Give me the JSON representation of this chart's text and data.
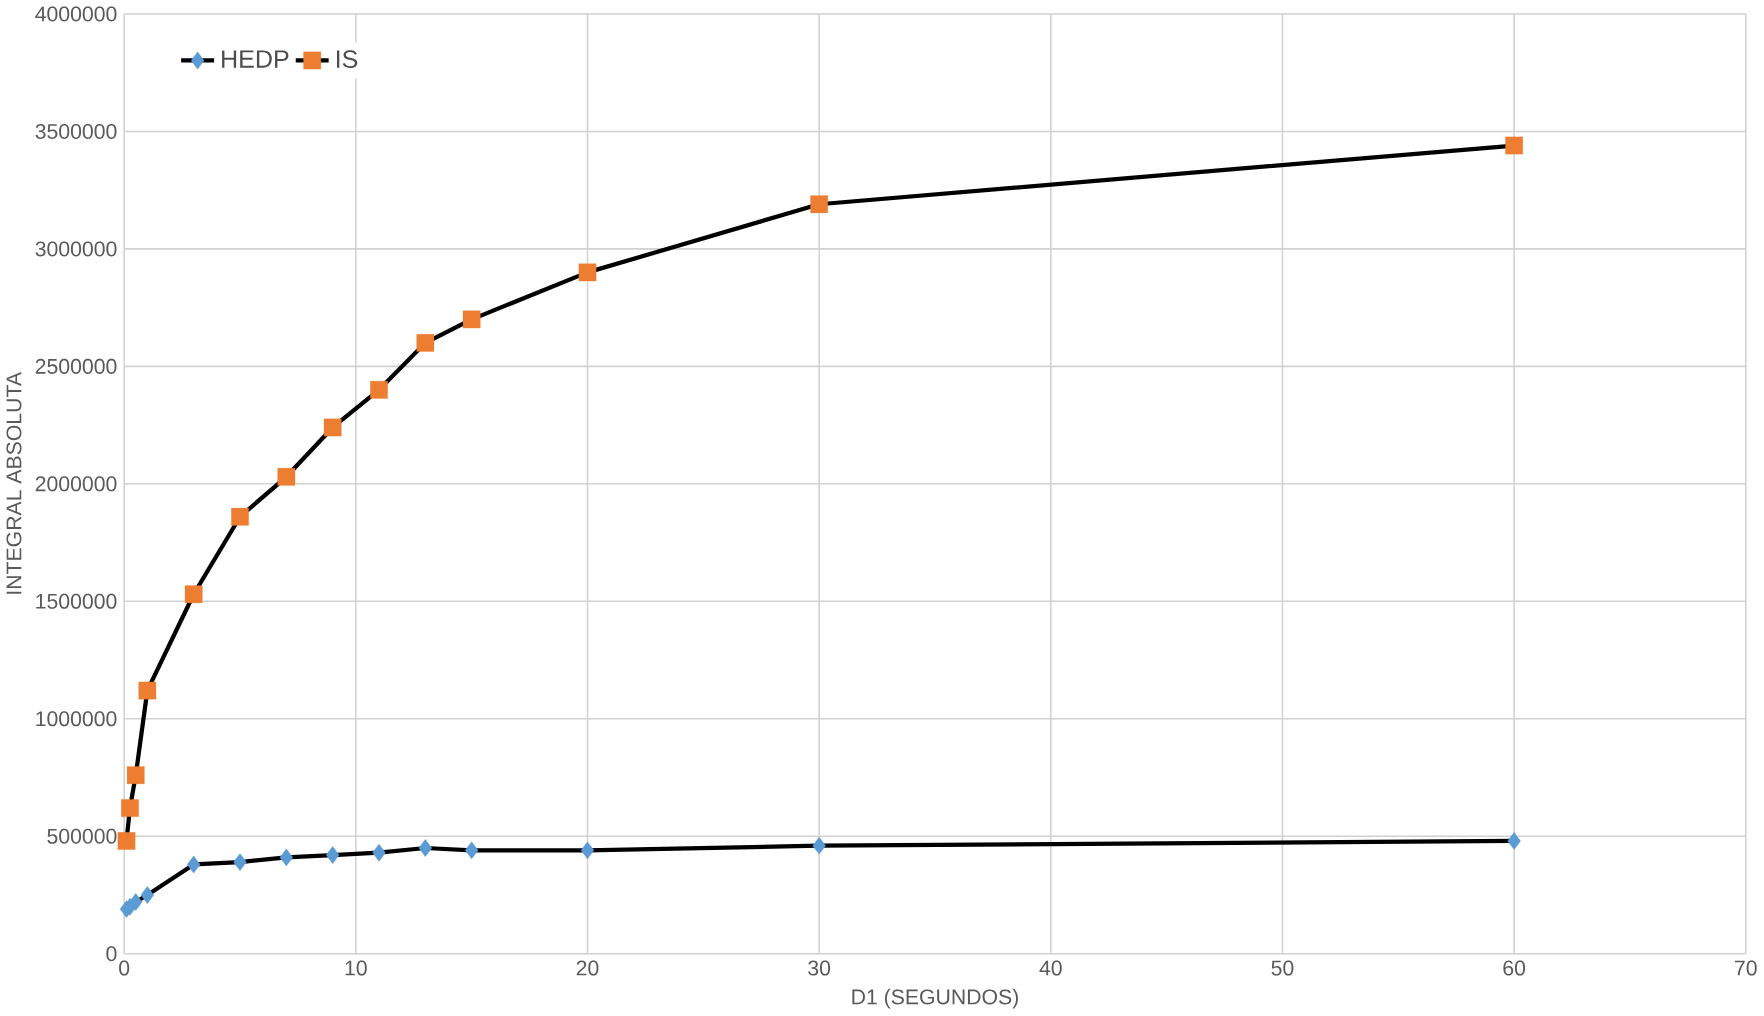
{
  "chart_data": {
    "type": "line",
    "xlabel": "D1 (SEGUNDOS)",
    "ylabel": "INTEGRAL ABSOLUTA",
    "x": [
      0.1,
      0.25,
      0.5,
      1,
      3,
      5,
      7,
      9,
      11,
      13,
      15,
      20,
      30,
      60
    ],
    "series": [
      {
        "name": "HEDP",
        "color": "#5b9bd5",
        "marker": "diamond",
        "values": [
          190000,
          200000,
          220000,
          250000,
          380000,
          390000,
          410000,
          420000,
          430000,
          450000,
          440000,
          440000,
          460000,
          480000
        ]
      },
      {
        "name": "IS",
        "color": "#ed7d31",
        "marker": "square",
        "values": [
          480000,
          620000,
          760000,
          1120000,
          1530000,
          1860000,
          2030000,
          2240000,
          2400000,
          2600000,
          2700000,
          2900000,
          3190000,
          3440000
        ]
      }
    ],
    "xlim": [
      0,
      70
    ],
    "xticks": [
      0,
      10,
      20,
      30,
      40,
      50,
      60,
      70
    ],
    "ylim": [
      0,
      4000000
    ],
    "yticks": [
      0,
      500000,
      1000000,
      1500000,
      2000000,
      2500000,
      3000000,
      3500000,
      4000000
    ],
    "grid": true,
    "legend": "top left",
    "line_style": "solid"
  }
}
